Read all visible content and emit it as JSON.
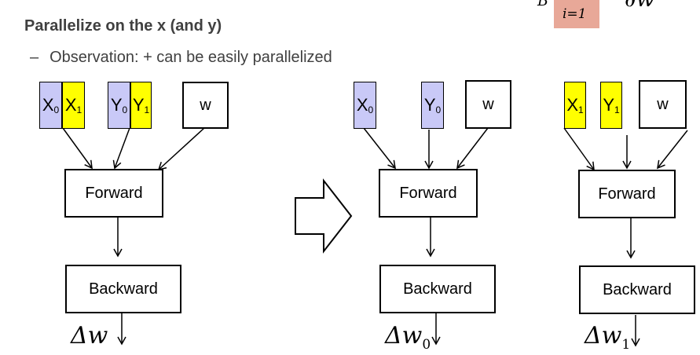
{
  "header": {
    "heading": "Parallelize on the x (and y)",
    "bullet_dash": "–",
    "bullet_text": "Observation: + can be easily parallelized"
  },
  "formula_fragment": {
    "left_var": "B",
    "sum_index": "i=1",
    "right_fragment": "∂w"
  },
  "left_diagram": {
    "inputs": [
      {
        "base": "X",
        "sub": "0",
        "color": "blue"
      },
      {
        "base": "X",
        "sub": "1",
        "color": "yellow"
      },
      {
        "base": "Y",
        "sub": "0",
        "color": "blue"
      },
      {
        "base": "Y",
        "sub": "1",
        "color": "yellow"
      }
    ],
    "weight": "w",
    "forward": "Forward",
    "backward": "Backward",
    "output_base": "Δw",
    "output_sub": ""
  },
  "mid_diagram": {
    "inputs": [
      {
        "base": "X",
        "sub": "0",
        "color": "blue"
      },
      {
        "base": "Y",
        "sub": "0",
        "color": "blue"
      }
    ],
    "weight": "w",
    "forward": "Forward",
    "backward": "Backward",
    "output_base": "Δw",
    "output_sub": "0"
  },
  "right_diagram": {
    "inputs": [
      {
        "base": "X",
        "sub": "1",
        "color": "yellow"
      },
      {
        "base": "Y",
        "sub": "1",
        "color": "yellow"
      }
    ],
    "weight": "w",
    "forward": "Forward",
    "backward": "Backward",
    "output_base": "Δw",
    "output_sub": "1"
  },
  "colors": {
    "blue": "#c9c9f7",
    "yellow": "#ffff00",
    "text_gray": "#404040",
    "formula_highlight": "#e8a898"
  }
}
